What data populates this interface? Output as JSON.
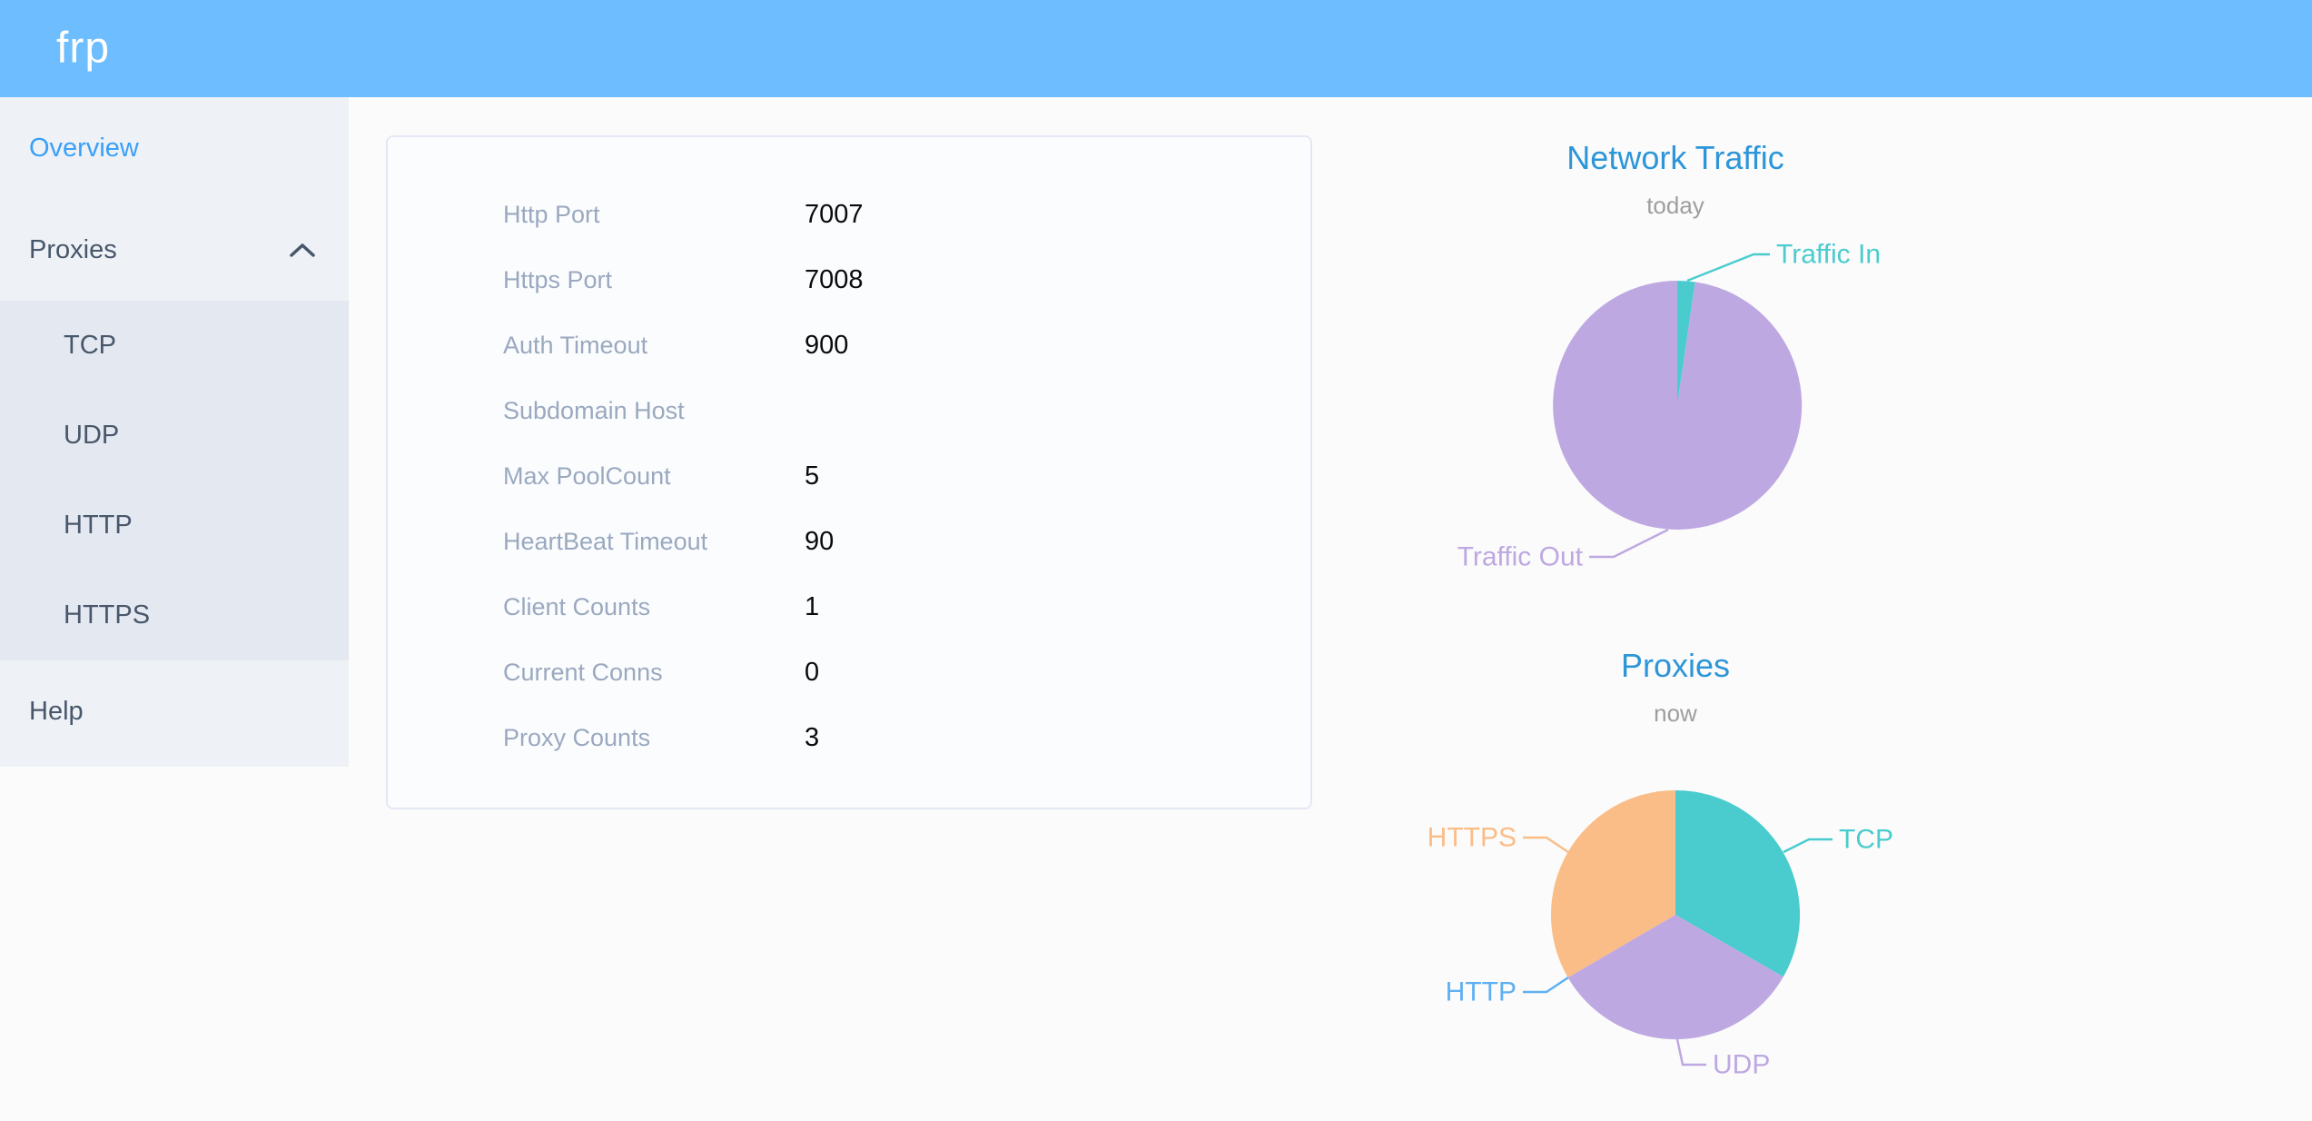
{
  "app": {
    "logo": "frp"
  },
  "colors": {
    "header_bg": "#6dbdff",
    "sidebar_bg": "#eef1f6",
    "submenu_bg": "#e4e8f1",
    "sidebar_text": "#48576a",
    "active_link": "#3aa0f8",
    "chart_title_blue": "#2d96d8",
    "label_gray": "#9aa9bf"
  },
  "sidebar": {
    "items": [
      {
        "label": "Overview",
        "active": true
      },
      {
        "label": "Proxies",
        "expanded": true,
        "children": [
          "TCP",
          "UDP",
          "HTTP",
          "HTTPS"
        ]
      },
      {
        "label": "Help",
        "active": false
      }
    ]
  },
  "overview": {
    "rows": [
      {
        "label": "Http Port",
        "value": "7007"
      },
      {
        "label": "Https Port",
        "value": "7008"
      },
      {
        "label": "Auth Timeout",
        "value": "900"
      },
      {
        "label": "Subdomain Host",
        "value": ""
      },
      {
        "label": "Max PoolCount",
        "value": "5"
      },
      {
        "label": "HeartBeat Timeout",
        "value": "90"
      },
      {
        "label": "Client Counts",
        "value": "1"
      },
      {
        "label": "Current Conns",
        "value": "0"
      },
      {
        "label": "Proxy Counts",
        "value": "3"
      }
    ]
  },
  "chart_data": [
    {
      "type": "pie",
      "title": "Network Traffic",
      "subtitle": "today",
      "legend_position": "none",
      "labels_position": "outside",
      "slices": [
        {
          "name": "Traffic In",
          "percent": 2.3,
          "color": "#4accce",
          "label_side": "right"
        },
        {
          "name": "Traffic Out",
          "percent": 97.7,
          "color": "#bea8e2",
          "label_side": "left"
        }
      ]
    },
    {
      "type": "pie",
      "title": "Proxies",
      "subtitle": "now",
      "legend_position": "none",
      "labels_position": "outside",
      "slices": [
        {
          "name": "TCP",
          "percent": 33.3,
          "color": "#4accce",
          "label_side": "right"
        },
        {
          "name": "UDP",
          "percent": 33.3,
          "color": "#bea8e2",
          "label_side": "right"
        },
        {
          "name": "HTTP",
          "percent": 0,
          "color": "#5fb0f2",
          "label_side": "left"
        },
        {
          "name": "HTTPS",
          "percent": 33.4,
          "color": "#fabd87",
          "label_side": "left"
        }
      ]
    }
  ]
}
